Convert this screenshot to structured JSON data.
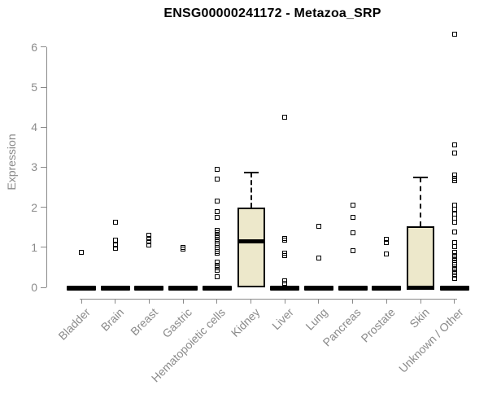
{
  "header": {
    "title": "ENSG00000241172 - Metazoa_SRP"
  },
  "chart_data": {
    "type": "boxplot",
    "title": "ENSG00000241172 - Metazoa_SRP",
    "xlabel": "",
    "ylabel": "Expression",
    "ylim": [
      0,
      6.4
    ],
    "yticks": [
      0,
      1,
      2,
      3,
      4,
      5,
      6
    ],
    "grid": "off",
    "legend": "none",
    "categories": [
      "Bladder",
      "Brain",
      "Breast",
      "Gastric",
      "Hematopoietic cells",
      "Kidney",
      "Liver",
      "Lung",
      "Pancreas",
      "Prostate",
      "Skin",
      "Unknown / Other"
    ],
    "series": [
      {
        "category": "Bladder",
        "box": {
          "q1": 0,
          "median": 0,
          "q3": 0,
          "whisker_low": 0,
          "whisker_high": 0
        },
        "outliers": [
          0.88
        ]
      },
      {
        "category": "Brain",
        "box": {
          "q1": 0,
          "median": 0,
          "q3": 0,
          "whisker_low": 0,
          "whisker_high": 0
        },
        "outliers": [
          1.63,
          1.18,
          1.05,
          0.97
        ]
      },
      {
        "category": "Breast",
        "box": {
          "q1": 0,
          "median": 0,
          "q3": 0,
          "whisker_low": 0,
          "whisker_high": 0
        },
        "outliers": [
          1.3,
          1.22,
          1.13,
          1.05
        ]
      },
      {
        "category": "Gastric",
        "box": {
          "q1": 0,
          "median": 0,
          "q3": 0,
          "whisker_low": 0,
          "whisker_high": 0
        },
        "outliers": [
          1.0,
          0.95
        ]
      },
      {
        "category": "Hematopoietic cells",
        "box": {
          "q1": 0,
          "median": 0,
          "q3": 0,
          "whisker_low": 0,
          "whisker_high": 0
        },
        "outliers": [
          2.95,
          2.7,
          2.16,
          1.89,
          1.75,
          1.42,
          1.36,
          1.3,
          1.25,
          1.2,
          1.15,
          1.1,
          1.05,
          1.0,
          0.95,
          0.9,
          0.85,
          0.63,
          0.55,
          0.48,
          0.43,
          0.26
        ]
      },
      {
        "category": "Kidney",
        "box": {
          "q1": 0,
          "median": 1.15,
          "q3": 2.0,
          "whisker_low": 0,
          "whisker_high": 2.87
        },
        "outliers": []
      },
      {
        "category": "Liver",
        "box": {
          "q1": 0,
          "median": 0,
          "q3": 0,
          "whisker_low": 0,
          "whisker_high": 0
        },
        "outliers": [
          4.25,
          1.22,
          1.17,
          0.86,
          0.8,
          0.16,
          0.1
        ]
      },
      {
        "category": "Lung",
        "box": {
          "q1": 0,
          "median": 0,
          "q3": 0,
          "whisker_low": 0,
          "whisker_high": 0
        },
        "outliers": [
          1.52,
          0.73
        ]
      },
      {
        "category": "Pancreas",
        "box": {
          "q1": 0,
          "median": 0,
          "q3": 0,
          "whisker_low": 0,
          "whisker_high": 0
        },
        "outliers": [
          2.06,
          1.74,
          1.37,
          0.92
        ]
      },
      {
        "category": "Prostate",
        "box": {
          "q1": 0,
          "median": 0,
          "q3": 0,
          "whisker_low": 0,
          "whisker_high": 0
        },
        "outliers": [
          1.21,
          1.12,
          0.83
        ]
      },
      {
        "category": "Skin",
        "box": {
          "q1": 0,
          "median": 0,
          "q3": 1.52,
          "whisker_low": 0,
          "whisker_high": 2.74
        },
        "outliers": []
      },
      {
        "category": "Unknown / Other",
        "box": {
          "q1": 0,
          "median": 0,
          "q3": 0,
          "whisker_low": 0,
          "whisker_high": 0
        },
        "outliers": [
          6.32,
          3.55,
          3.35,
          2.8,
          2.73,
          2.66,
          2.05,
          1.95,
          1.84,
          1.73,
          1.63,
          1.38,
          1.12,
          1.02,
          0.87,
          0.8,
          0.74,
          0.68,
          0.62,
          0.56,
          0.5,
          0.44,
          0.37,
          0.3,
          0.22
        ]
      }
    ],
    "style": {
      "box_fill": "#EDE8CB",
      "box_border": "#000000",
      "median_color": "#000000",
      "point_color": "#000000",
      "axis_color": "#8A8A8A",
      "label_color": "#8A8A8A",
      "title_color": "#000000",
      "background": "#FFFFFF"
    }
  }
}
